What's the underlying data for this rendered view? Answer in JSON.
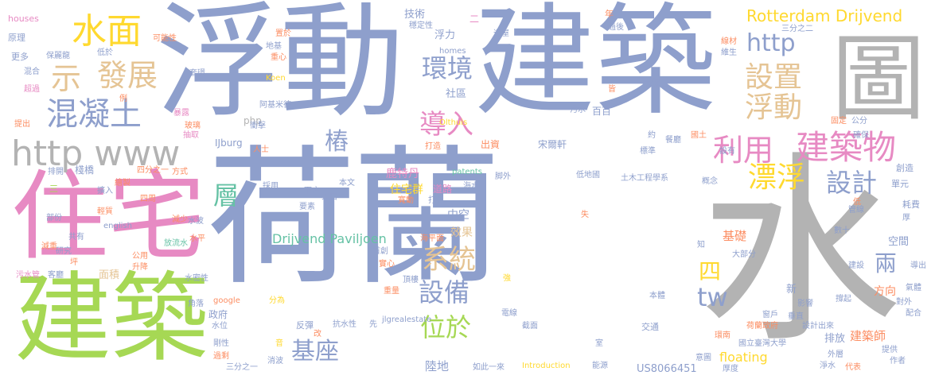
{
  "word_cloud": {
    "colors": {
      "periwinkle": "#8E9FCC",
      "gray": "#B3B3B3",
      "green": "#A6D854",
      "pink": "#E78AC3",
      "tan": "#E5C494",
      "orange": "#FC8D62",
      "teal": "#66C2A5",
      "yellow": "#FFD92F"
    },
    "words": [
      {
        "text": "荷蘭"
      },
      {
        "text": "水"
      },
      {
        "text": "浮動"
      },
      {
        "text": "建築"
      },
      {
        "text": "建築"
      },
      {
        "text": "住宅"
      },
      {
        "text": "圖"
      },
      {
        "text": "http www"
      },
      {
        "text": "水面"
      },
      {
        "text": "混凝土"
      },
      {
        "text": "發展"
      },
      {
        "text": "示"
      },
      {
        "text": "建築物"
      },
      {
        "text": "Rotterdam Drijvend"
      },
      {
        "text": "http"
      },
      {
        "text": "設置"
      },
      {
        "text": "浮動"
      },
      {
        "text": "環境"
      },
      {
        "text": "導入"
      },
      {
        "text": "利用"
      },
      {
        "text": "漂浮"
      },
      {
        "text": "設計"
      },
      {
        "text": "層"
      },
      {
        "text": "系統"
      },
      {
        "text": "設備"
      },
      {
        "text": "位於"
      },
      {
        "text": "基座"
      },
      {
        "text": "Drijvend Paviljoen"
      },
      {
        "text": "tw"
      },
      {
        "text": "兩"
      },
      {
        "text": "四"
      },
      {
        "text": "樁"
      },
      {
        "text": "住宅群"
      },
      {
        "text": "鹿特丹"
      },
      {
        "text": "中空"
      },
      {
        "text": "效果"
      },
      {
        "text": "陸地"
      },
      {
        "text": "基礎"
      },
      {
        "text": "空間"
      },
      {
        "text": "方向"
      },
      {
        "text": "排放"
      },
      {
        "text": "建築師"
      },
      {
        "text": "floating"
      },
      {
        "text": "US8066451"
      },
      {
        "text": "技術"
      },
      {
        "text": "浮力"
      },
      {
        "text": "社區"
      },
      {
        "text": "出資"
      },
      {
        "text": "宋爾軒"
      },
      {
        "text": "houses"
      },
      {
        "text": "原理"
      },
      {
        "text": "更多"
      },
      {
        "text": "可能性"
      },
      {
        "text": "保麗龍"
      },
      {
        "text": "低於"
      },
      {
        "text": "混合"
      },
      {
        "text": "超過"
      },
      {
        "text": "套環"
      },
      {
        "text": "地基"
      },
      {
        "text": "重心"
      },
      {
        "text": "Koen"
      },
      {
        "text": "提出"
      },
      {
        "text": "抽取"
      },
      {
        "text": "php"
      },
      {
        "text": "IJburg"
      },
      {
        "text": "人士"
      },
      {
        "text": "棧橋"
      },
      {
        "text": "三"
      },
      {
        "text": "四分之一"
      },
      {
        "text": "方式"
      },
      {
        "text": "採用"
      },
      {
        "text": "水波"
      },
      {
        "text": "減少"
      },
      {
        "text": "放流水"
      },
      {
        "text": "english"
      },
      {
        "text": "水平"
      },
      {
        "text": "共有"
      },
      {
        "text": "研究"
      },
      {
        "text": "面積"
      },
      {
        "text": "公用"
      },
      {
        "text": "升降"
      },
      {
        "text": "水密性"
      },
      {
        "text": "污水管"
      },
      {
        "text": "客廳"
      },
      {
        "text": "政府"
      },
      {
        "text": "google"
      },
      {
        "text": "水位"
      },
      {
        "text": "剛性"
      },
      {
        "text": "過剩"
      },
      {
        "text": "三分之一"
      },
      {
        "text": "反彈"
      },
      {
        "text": "抗水性"
      },
      {
        "text": "消波"
      },
      {
        "text": "如此一來"
      },
      {
        "text": "Introduction"
      },
      {
        "text": "能源"
      },
      {
        "text": "交通"
      },
      {
        "text": "國立臺灣大學"
      },
      {
        "text": "荷蘭政府"
      },
      {
        "text": "設計出來"
      },
      {
        "text": "作者"
      },
      {
        "text": "環保"
      },
      {
        "text": "耗費"
      },
      {
        "text": "土木工程學系"
      },
      {
        "text": "patents"
      },
      {
        "text": "海水"
      },
      {
        "text": "海平面"
      },
      {
        "text": "打造"
      },
      {
        "text": "道路"
      },
      {
        "text": "低地國"
      },
      {
        "text": "新"
      },
      {
        "text": "影響"
      },
      {
        "text": "窗戶"
      },
      {
        "text": "大部分"
      },
      {
        "text": "餐廳"
      },
      {
        "text": "百百"
      },
      {
        "text": "污水"
      },
      {
        "text": "公分"
      },
      {
        "text": "固定"
      },
      {
        "text": "國土"
      },
      {
        "text": "穩定性"
      },
      {
        "text": "置於"
      },
      {
        "text": "減重"
      },
      {
        "text": "排開"
      },
      {
        "text": "繪製"
      },
      {
        "text": "擴入"
      },
      {
        "text": "臥室"
      },
      {
        "text": "頂樓"
      },
      {
        "text": "重量"
      },
      {
        "text": "電線"
      },
      {
        "text": "截面"
      },
      {
        "text": "首創"
      },
      {
        "text": "實心"
      },
      {
        "text": "jlgrealestate"
      },
      {
        "text": "Olthuis"
      },
      {
        "text": "homes"
      },
      {
        "text": "阿基米德"
      },
      {
        "text": "暴露"
      },
      {
        "text": "玻璃"
      },
      {
        "text": "衝擊"
      },
      {
        "text": "年"
      },
      {
        "text": "三分之二"
      },
      {
        "text": "線材"
      },
      {
        "text": "維生"
      },
      {
        "text": "二"
      },
      {
        "text": "造屋"
      },
      {
        "text": "皆"
      },
      {
        "text": "標準"
      },
      {
        "text": "設有"
      },
      {
        "text": "確保"
      },
      {
        "text": "概念"
      },
      {
        "text": "管線"
      },
      {
        "text": "厚"
      },
      {
        "text": "數十"
      },
      {
        "text": "配合"
      },
      {
        "text": "對外"
      },
      {
        "text": "氣體"
      },
      {
        "text": "導出"
      },
      {
        "text": "建設"
      },
      {
        "text": "撐起"
      },
      {
        "text": "垂直"
      },
      {
        "text": "本體"
      },
      {
        "text": "意圖"
      },
      {
        "text": "厚度"
      },
      {
        "text": "外層"
      },
      {
        "text": "淨水"
      },
      {
        "text": "代表"
      },
      {
        "text": "創造"
      },
      {
        "text": "單元"
      },
      {
        "text": "低"
      },
      {
        "text": "四周"
      },
      {
        "text": "輕質"
      },
      {
        "text": "部份"
      },
      {
        "text": "要素"
      },
      {
        "text": "人口"
      },
      {
        "text": "下方"
      },
      {
        "text": "本文"
      },
      {
        "text": "寬動"
      },
      {
        "text": "打入"
      },
      {
        "text": "過後"
      },
      {
        "text": "例"
      },
      {
        "text": "角落"
      },
      {
        "text": "先"
      },
      {
        "text": "改"
      },
      {
        "text": "強"
      },
      {
        "text": "室"
      },
      {
        "text": "坪"
      },
      {
        "text": "分為"
      },
      {
        "text": "音"
      },
      {
        "text": "知"
      },
      {
        "text": "約"
      },
      {
        "text": "失"
      },
      {
        "text": "脚外"
      },
      {
        "text": "提供"
      },
      {
        "text": "環南"
      }
    ]
  }
}
